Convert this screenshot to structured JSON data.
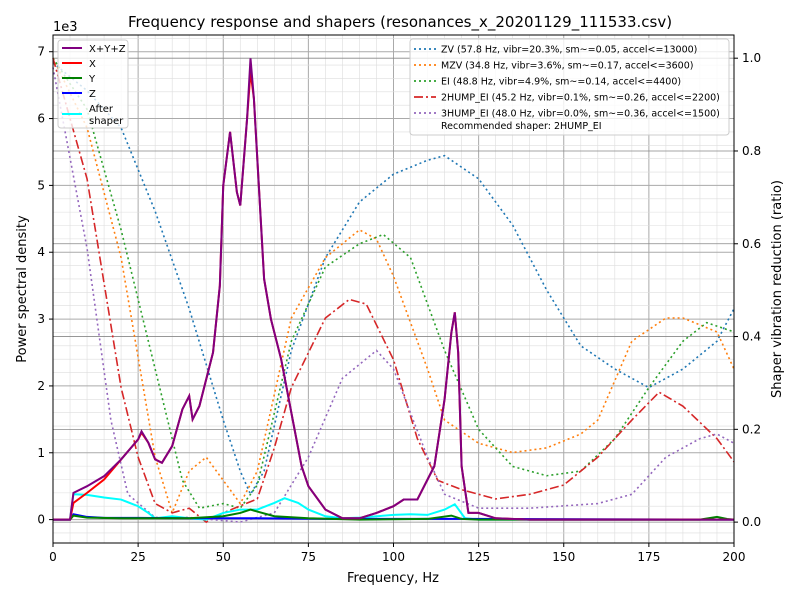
{
  "chart_data": {
    "type": "line",
    "title": "Frequency response and shapers (resonances_x_20201129_111533.csv)",
    "xlabel": "Frequency, Hz",
    "ylabel": "Power spectral density",
    "y2label": "Shaper vibration reduction (ratio)",
    "y_offset_label": "1e3",
    "xlim": [
      0,
      200
    ],
    "ylim": [
      -350,
      7250
    ],
    "y2lim": [
      -0.045,
      1.05
    ],
    "xticks": [
      "0",
      "25",
      "50",
      "75",
      "100",
      "125",
      "150",
      "175",
      "200"
    ],
    "yticks": [
      "0",
      "1",
      "2",
      "3",
      "4",
      "5",
      "6",
      "7"
    ],
    "y2ticks": [
      "0.0",
      "0.2",
      "0.4",
      "0.6",
      "0.8",
      "1.0"
    ],
    "grid": true,
    "psd_legend_placement": "top-left",
    "shaper_legend_placement": "top-right",
    "recommended": "Recommended shaper: 2HUMP_EI",
    "psd_series": [
      {
        "name": "X+Y+Z",
        "color": "#800080",
        "x": [
          0,
          5,
          6,
          10,
          15,
          20,
          25,
          26,
          28,
          30,
          32,
          35,
          38,
          40,
          41,
          43,
          45,
          47,
          49,
          50,
          52,
          54,
          55,
          57,
          58,
          59,
          61,
          62,
          64,
          67,
          70,
          73,
          75,
          80,
          85,
          90,
          95,
          100,
          103,
          107,
          110,
          112,
          115,
          117,
          118,
          119,
          120,
          122,
          125,
          130,
          140,
          200
        ],
        "y": [
          0,
          0,
          400,
          500,
          650,
          900,
          1200,
          1320,
          1150,
          900,
          850,
          1100,
          1650,
          1850,
          1500,
          1700,
          2100,
          2500,
          3500,
          5000,
          5800,
          4900,
          4700,
          6000,
          6900,
          6300,
          4500,
          3600,
          3000,
          2400,
          1600,
          800,
          500,
          150,
          20,
          20,
          100,
          200,
          300,
          300,
          600,
          800,
          1800,
          2800,
          3100,
          2500,
          800,
          100,
          100,
          20,
          0,
          0
        ]
      },
      {
        "name": "X",
        "color": "#ff0000",
        "x": [
          0,
          5,
          6,
          10,
          15,
          20,
          25,
          26,
          28,
          30,
          32,
          35,
          38,
          40,
          41,
          43,
          45,
          47,
          49,
          50,
          52,
          54,
          55,
          57,
          58,
          59,
          61,
          62,
          64,
          67,
          70,
          73,
          75,
          80,
          85,
          90,
          95,
          100,
          103,
          107,
          110,
          112,
          115,
          117,
          118,
          119,
          120,
          122,
          125,
          130,
          140,
          200
        ],
        "y": [
          0,
          0,
          250,
          400,
          600,
          900,
          1200,
          1300,
          1150,
          900,
          850,
          1100,
          1650,
          1850,
          1500,
          1700,
          2100,
          2500,
          3500,
          5000,
          5800,
          4900,
          4700,
          6000,
          6700,
          6300,
          4500,
          3600,
          3000,
          2400,
          1600,
          800,
          500,
          150,
          20,
          20,
          100,
          200,
          300,
          300,
          600,
          800,
          1800,
          2800,
          3100,
          2500,
          800,
          100,
          100,
          20,
          0,
          0
        ]
      },
      {
        "name": "Y",
        "color": "#008000",
        "x": [
          0,
          5,
          6,
          10,
          20,
          40,
          50,
          55,
          58,
          60,
          65,
          75,
          90,
          110,
          117,
          120,
          125,
          190,
          195,
          198,
          200
        ],
        "y": [
          0,
          0,
          60,
          30,
          20,
          20,
          50,
          100,
          150,
          120,
          50,
          20,
          0,
          10,
          60,
          10,
          0,
          0,
          40,
          10,
          0
        ]
      },
      {
        "name": "Z",
        "color": "#0000ff",
        "x": [
          0,
          5,
          6,
          10,
          15,
          25,
          40,
          60,
          80,
          120,
          200
        ],
        "y": [
          0,
          0,
          80,
          40,
          25,
          25,
          20,
          20,
          10,
          10,
          0
        ]
      },
      {
        "name": "After\nshaper",
        "color": "#00ffff",
        "x": [
          0,
          5,
          6,
          10,
          15,
          20,
          25,
          28,
          30,
          35,
          40,
          45,
          50,
          55,
          60,
          65,
          68,
          72,
          75,
          80,
          85,
          90,
          100,
          105,
          110,
          115,
          118,
          121,
          125,
          200
        ],
        "y": [
          0,
          0,
          380,
          370,
          330,
          300,
          200,
          100,
          20,
          50,
          20,
          0,
          100,
          150,
          150,
          250,
          320,
          250,
          150,
          50,
          20,
          30,
          70,
          80,
          70,
          150,
          230,
          20,
          0,
          0
        ]
      }
    ],
    "shaper_series": [
      {
        "name": "ZV (57.8 Hz, vibr=20.3%, sm~=0.05, accel<=13000)",
        "color": "#1f77b4",
        "style": "dotted",
        "x": [
          0,
          10,
          20,
          30,
          40,
          50,
          55,
          58,
          62,
          70,
          80,
          90,
          100,
          110,
          115,
          125,
          135,
          145,
          150,
          155,
          165,
          175,
          185,
          195,
          200
        ],
        "y": [
          0.99,
          0.93,
          0.85,
          0.67,
          0.46,
          0.22,
          0.11,
          0.06,
          0.11,
          0.37,
          0.57,
          0.69,
          0.75,
          0.78,
          0.79,
          0.74,
          0.64,
          0.5,
          0.44,
          0.38,
          0.33,
          0.29,
          0.33,
          0.39,
          0.46
        ]
      },
      {
        "name": "MZV (34.8 Hz, vibr=3.6%, sm~=0.17, accel<=3600)",
        "color": "#ff7f0e",
        "style": "dotted",
        "x": [
          0,
          10,
          20,
          30,
          35,
          40,
          45,
          50,
          55,
          60,
          70,
          80,
          90,
          95,
          100,
          110,
          115,
          125,
          135,
          145,
          155,
          160,
          170,
          180,
          185,
          195,
          200
        ],
        "y": [
          1.0,
          0.85,
          0.57,
          0.14,
          0.02,
          0.11,
          0.14,
          0.09,
          0.04,
          0.11,
          0.44,
          0.57,
          0.63,
          0.61,
          0.53,
          0.33,
          0.22,
          0.17,
          0.15,
          0.16,
          0.19,
          0.22,
          0.39,
          0.44,
          0.44,
          0.41,
          0.33
        ]
      },
      {
        "name": "EI (48.8 Hz, vibr=4.9%, sm~=0.14, accel<=4400)",
        "color": "#2ca02c",
        "style": "dotted",
        "x": [
          0,
          10,
          20,
          30,
          38,
          43,
          50,
          55,
          60,
          70,
          80,
          90,
          97,
          105,
          115,
          125,
          135,
          145,
          155,
          165,
          175,
          185,
          192,
          200
        ],
        "y": [
          1.0,
          0.89,
          0.63,
          0.33,
          0.09,
          0.03,
          0.04,
          0.03,
          0.08,
          0.39,
          0.55,
          0.6,
          0.62,
          0.57,
          0.37,
          0.2,
          0.12,
          0.1,
          0.11,
          0.18,
          0.29,
          0.39,
          0.43,
          0.41
        ]
      },
      {
        "name": "2HUMP_EI (45.2 Hz, vibr=0.1%, sm~=0.26, accel<=2200)",
        "color": "#d62728",
        "style": "dashdot",
        "x": [
          0,
          10,
          20,
          25,
          30,
          35,
          40,
          45,
          50,
          60,
          65,
          70,
          80,
          87,
          92,
          100,
          107,
          113,
          120,
          130,
          140,
          150,
          160,
          170,
          178,
          185,
          195,
          200
        ],
        "y": [
          1.0,
          0.74,
          0.29,
          0.14,
          0.04,
          0.02,
          0.03,
          0.0,
          0.02,
          0.05,
          0.16,
          0.29,
          0.44,
          0.48,
          0.47,
          0.35,
          0.18,
          0.09,
          0.07,
          0.05,
          0.06,
          0.08,
          0.14,
          0.22,
          0.28,
          0.25,
          0.18,
          0.13
        ]
      },
      {
        "name": "3HUMP_EI (48.0 Hz, vibr=0.0%, sm~=0.36, accel<=1500)",
        "color": "#9467bd",
        "style": "dotted",
        "x": [
          0,
          10,
          17,
          22,
          30,
          40,
          55,
          65,
          75,
          85,
          95,
          100,
          110,
          115,
          125,
          140,
          160,
          170,
          180,
          190,
          195,
          200
        ],
        "y": [
          0.98,
          0.59,
          0.22,
          0.06,
          0.01,
          0.01,
          0.0,
          0.02,
          0.14,
          0.31,
          0.37,
          0.33,
          0.14,
          0.06,
          0.03,
          0.03,
          0.04,
          0.06,
          0.14,
          0.18,
          0.19,
          0.17
        ]
      }
    ]
  }
}
